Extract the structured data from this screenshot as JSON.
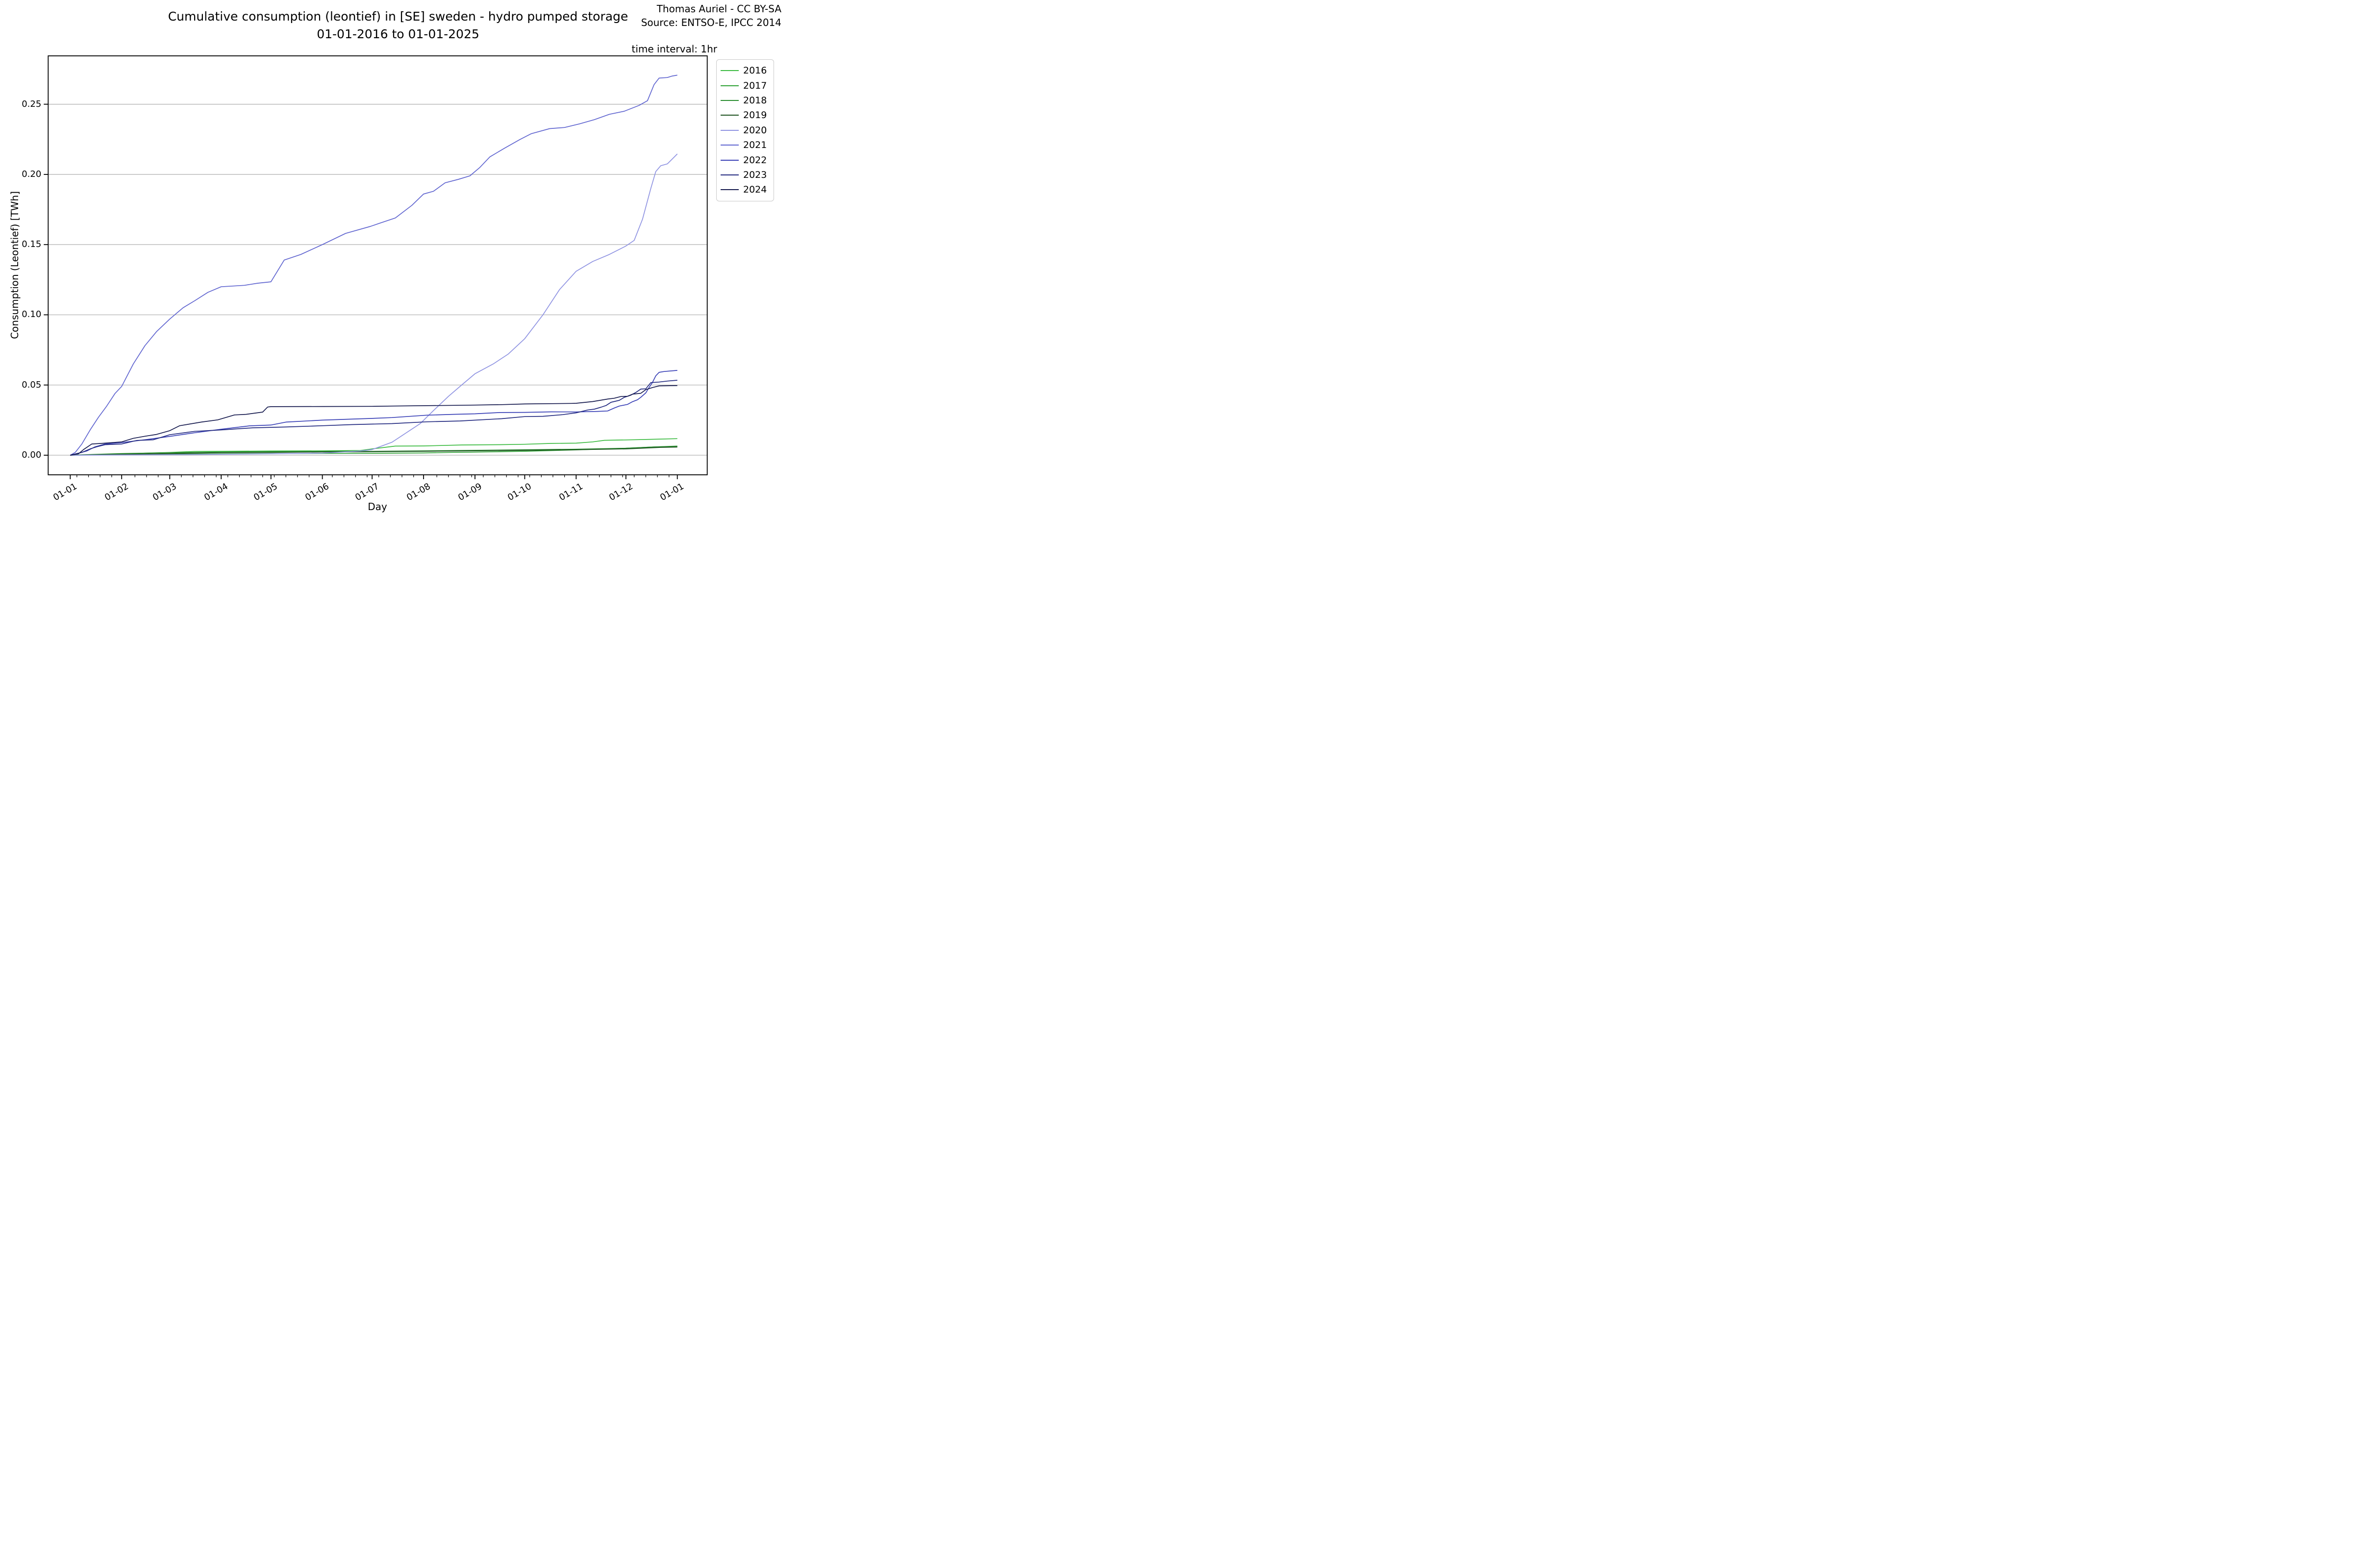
{
  "figure": {
    "title_line1": "Cumulative consumption (leontief) in [SE] sweden - hydro pumped storage",
    "title_line2": "01-01-2016 to 01-01-2025",
    "credit_line1": "Thomas Auriel - CC BY-SA",
    "credit_line2": "Source: ENTSO-E, IPCC 2014",
    "time_interval_note": "time interval: 1hr"
  },
  "chart_data": {
    "type": "line",
    "title": "Cumulative consumption (leontief) in [SE] sweden - hydro pumped storage",
    "subtitle": "01-01-2016 to 01-01-2025",
    "xlabel": "Day",
    "ylabel": "Consumption (Leontief) [TWh]",
    "x_unit": "day of year (01-01 to next 01-01)",
    "x_tick_labels": [
      "01-01",
      "01-02",
      "01-03",
      "01-04",
      "01-05",
      "01-06",
      "01-07",
      "01-08",
      "01-09",
      "01-10",
      "01-11",
      "01-12",
      "01-01"
    ],
    "x_tick_days": [
      0,
      31,
      60,
      91,
      121,
      152,
      182,
      213,
      244,
      274,
      305,
      335,
      366
    ],
    "x_minor_tick_interval_days": 7,
    "y_ticks": [
      0.0,
      0.05,
      0.1,
      0.15,
      0.2,
      0.25
    ],
    "ylim": [
      -0.014,
      0.2845
    ],
    "xlim_days": [
      -13.4,
      383.8
    ],
    "grid": "horizontal major gridlines",
    "grid_color": "#b4b4b4",
    "spine_color": "#000000",
    "legend_position": "outside upper right",
    "legend": {
      "entries": [
        {
          "label": "2016",
          "color": "#3cbb41"
        },
        {
          "label": "2017",
          "color": "#2fa136"
        },
        {
          "label": "2018",
          "color": "#2b8e31"
        },
        {
          "label": "2019",
          "color": "#1d521f"
        },
        {
          "label": "2020",
          "color": "#9094e2"
        },
        {
          "label": "2021",
          "color": "#6166d0"
        },
        {
          "label": "2022",
          "color": "#3940b6"
        },
        {
          "label": "2023",
          "color": "#232a80"
        },
        {
          "label": "2024",
          "color": "#161a4e"
        }
      ]
    },
    "series": [
      {
        "name": "2016",
        "color": "#3cbb41",
        "points": [
          [
            0,
            0
          ],
          [
            10,
            0.0002
          ],
          [
            31,
            0.0008
          ],
          [
            45,
            0.0015
          ],
          [
            60,
            0.002
          ],
          [
            75,
            0.0027
          ],
          [
            91,
            0.0028
          ],
          [
            121,
            0.003
          ],
          [
            152,
            0.0031
          ],
          [
            175,
            0.0034
          ],
          [
            182,
            0.0045
          ],
          [
            196,
            0.0065
          ],
          [
            213,
            0.0066
          ],
          [
            236,
            0.0073
          ],
          [
            259,
            0.0075
          ],
          [
            274,
            0.0078
          ],
          [
            290,
            0.0084
          ],
          [
            305,
            0.0086
          ],
          [
            315,
            0.0095
          ],
          [
            322,
            0.0106
          ],
          [
            335,
            0.0109
          ],
          [
            350,
            0.0113
          ],
          [
            366,
            0.0118
          ]
        ]
      },
      {
        "name": "2017",
        "color": "#2fa136",
        "points": [
          [
            0,
            0
          ],
          [
            31,
            0.0004
          ],
          [
            60,
            0.0007
          ],
          [
            91,
            0.001
          ],
          [
            121,
            0.0012
          ],
          [
            152,
            0.0013
          ],
          [
            182,
            0.0014
          ],
          [
            213,
            0.0016
          ],
          [
            230,
            0.002
          ],
          [
            244,
            0.0022
          ],
          [
            274,
            0.0028
          ],
          [
            305,
            0.0038
          ],
          [
            322,
            0.0045
          ],
          [
            335,
            0.005
          ],
          [
            352,
            0.0059
          ],
          [
            366,
            0.0065
          ]
        ]
      },
      {
        "name": "2018",
        "color": "#2b8e31",
        "points": [
          [
            0,
            0
          ],
          [
            20,
            0.0008
          ],
          [
            31,
            0.0012
          ],
          [
            60,
            0.0018
          ],
          [
            91,
            0.0022
          ],
          [
            121,
            0.0025
          ],
          [
            152,
            0.0027
          ],
          [
            182,
            0.0028
          ],
          [
            213,
            0.0031
          ],
          [
            244,
            0.0035
          ],
          [
            274,
            0.0039
          ],
          [
            305,
            0.0043
          ],
          [
            335,
            0.005
          ],
          [
            352,
            0.0059
          ],
          [
            366,
            0.0063
          ]
        ]
      },
      {
        "name": "2019",
        "color": "#1d521f",
        "points": [
          [
            0,
            0
          ],
          [
            31,
            0.0006
          ],
          [
            60,
            0.0012
          ],
          [
            91,
            0.0018
          ],
          [
            121,
            0.002
          ],
          [
            152,
            0.0023
          ],
          [
            182,
            0.0025
          ],
          [
            213,
            0.0028
          ],
          [
            244,
            0.0031
          ],
          [
            274,
            0.0035
          ],
          [
            305,
            0.0039
          ],
          [
            335,
            0.0045
          ],
          [
            356,
            0.0056
          ],
          [
            366,
            0.0058
          ]
        ]
      },
      {
        "name": "2020",
        "color": "#9094e2",
        "points": [
          [
            0,
            0
          ],
          [
            31,
            0.0002
          ],
          [
            60,
            0.0004
          ],
          [
            91,
            0.0007
          ],
          [
            121,
            0.001
          ],
          [
            152,
            0.0015
          ],
          [
            175,
            0.003
          ],
          [
            182,
            0.004
          ],
          [
            194,
            0.0093
          ],
          [
            202,
            0.0155
          ],
          [
            211,
            0.0225
          ],
          [
            219,
            0.0318
          ],
          [
            228,
            0.0419
          ],
          [
            236,
            0.05
          ],
          [
            244,
            0.058
          ],
          [
            255,
            0.065
          ],
          [
            264,
            0.072
          ],
          [
            274,
            0.083
          ],
          [
            285,
            0.1
          ],
          [
            295,
            0.118
          ],
          [
            305,
            0.131
          ],
          [
            315,
            0.138
          ],
          [
            325,
            0.143
          ],
          [
            335,
            0.149
          ],
          [
            340,
            0.153
          ],
          [
            345,
            0.168
          ],
          [
            350,
            0.19
          ],
          [
            353,
            0.202
          ],
          [
            356,
            0.2062
          ],
          [
            360,
            0.2075
          ],
          [
            363,
            0.211
          ],
          [
            366,
            0.2146
          ]
        ]
      },
      {
        "name": "2021",
        "color": "#6166d0",
        "points": [
          [
            0,
            0
          ],
          [
            3,
            0.002
          ],
          [
            7,
            0.008
          ],
          [
            12,
            0.018
          ],
          [
            17,
            0.027
          ],
          [
            22,
            0.035
          ],
          [
            27,
            0.044
          ],
          [
            31,
            0.049
          ],
          [
            38,
            0.065
          ],
          [
            45,
            0.078
          ],
          [
            52,
            0.088
          ],
          [
            60,
            0.097
          ],
          [
            68,
            0.105
          ],
          [
            75,
            0.11
          ],
          [
            83,
            0.116
          ],
          [
            91,
            0.12
          ],
          [
            105,
            0.121
          ],
          [
            113,
            0.1225
          ],
          [
            121,
            0.1235
          ],
          [
            129,
            0.139
          ],
          [
            139,
            0.143
          ],
          [
            152,
            0.15
          ],
          [
            166,
            0.158
          ],
          [
            181,
            0.163
          ],
          [
            186,
            0.165
          ],
          [
            196,
            0.169
          ],
          [
            206,
            0.178
          ],
          [
            213,
            0.186
          ],
          [
            219,
            0.188
          ],
          [
            226,
            0.194
          ],
          [
            234,
            0.1965
          ],
          [
            241,
            0.199
          ],
          [
            247,
            0.205
          ],
          [
            253,
            0.2125
          ],
          [
            262,
            0.2188
          ],
          [
            271,
            0.2248
          ],
          [
            278,
            0.229
          ],
          [
            289,
            0.2326
          ],
          [
            298,
            0.2334
          ],
          [
            307,
            0.236
          ],
          [
            316,
            0.239
          ],
          [
            325,
            0.2428
          ],
          [
            334,
            0.245
          ],
          [
            343,
            0.2492
          ],
          [
            348,
            0.2525
          ],
          [
            352,
            0.264
          ],
          [
            355,
            0.2686
          ],
          [
            360,
            0.269
          ],
          [
            363,
            0.2701
          ],
          [
            366,
            0.2707
          ]
        ]
      },
      {
        "name": "2022",
        "color": "#3940b6",
        "points": [
          [
            0,
            0
          ],
          [
            10,
            0.003
          ],
          [
            15,
            0.006
          ],
          [
            21,
            0.008
          ],
          [
            31,
            0.009
          ],
          [
            45,
            0.011
          ],
          [
            60,
            0.0134
          ],
          [
            75,
            0.016
          ],
          [
            91,
            0.0185
          ],
          [
            108,
            0.0209
          ],
          [
            121,
            0.0215
          ],
          [
            130,
            0.0236
          ],
          [
            152,
            0.025
          ],
          [
            182,
            0.0262
          ],
          [
            194,
            0.0268
          ],
          [
            215,
            0.0285
          ],
          [
            231,
            0.0291
          ],
          [
            244,
            0.0295
          ],
          [
            259,
            0.0304
          ],
          [
            274,
            0.0305
          ],
          [
            290,
            0.0309
          ],
          [
            305,
            0.0308
          ],
          [
            318,
            0.0312
          ],
          [
            324,
            0.0315
          ],
          [
            328,
            0.0336
          ],
          [
            331,
            0.035
          ],
          [
            336,
            0.0362
          ],
          [
            339,
            0.0381
          ],
          [
            342,
            0.0395
          ],
          [
            344,
            0.0413
          ],
          [
            347,
            0.0444
          ],
          [
            349,
            0.0483
          ],
          [
            351,
            0.0518
          ],
          [
            353,
            0.0565
          ],
          [
            355,
            0.059
          ],
          [
            358,
            0.0596
          ],
          [
            366,
            0.0604
          ]
        ]
      },
      {
        "name": "2023",
        "color": "#232a80",
        "points": [
          [
            0,
            0
          ],
          [
            7,
            0.002
          ],
          [
            12,
            0.0045
          ],
          [
            16,
            0.006
          ],
          [
            21,
            0.0075
          ],
          [
            31,
            0.008
          ],
          [
            40,
            0.0105
          ],
          [
            50,
            0.011
          ],
          [
            60,
            0.0146
          ],
          [
            75,
            0.017
          ],
          [
            91,
            0.018
          ],
          [
            110,
            0.0195
          ],
          [
            130,
            0.0201
          ],
          [
            152,
            0.021
          ],
          [
            170,
            0.0218
          ],
          [
            194,
            0.0225
          ],
          [
            215,
            0.0238
          ],
          [
            235,
            0.0244
          ],
          [
            260,
            0.026
          ],
          [
            274,
            0.0275
          ],
          [
            285,
            0.0277
          ],
          [
            297,
            0.0289
          ],
          [
            305,
            0.0302
          ],
          [
            312,
            0.0322
          ],
          [
            316,
            0.0328
          ],
          [
            320,
            0.0342
          ],
          [
            323,
            0.0354
          ],
          [
            326,
            0.0377
          ],
          [
            331,
            0.0391
          ],
          [
            334,
            0.0412
          ],
          [
            338,
            0.0428
          ],
          [
            341,
            0.0447
          ],
          [
            344,
            0.0471
          ],
          [
            347,
            0.0473
          ],
          [
            350,
            0.0517
          ],
          [
            355,
            0.0521
          ],
          [
            360,
            0.0528
          ],
          [
            366,
            0.0534
          ]
        ]
      },
      {
        "name": "2024",
        "color": "#161a4e",
        "points": [
          [
            0,
            0
          ],
          [
            5,
            0.001
          ],
          [
            8,
            0.004
          ],
          [
            13,
            0.008
          ],
          [
            20,
            0.0085
          ],
          [
            31,
            0.0095
          ],
          [
            38,
            0.012
          ],
          [
            45,
            0.0135
          ],
          [
            52,
            0.0148
          ],
          [
            60,
            0.0175
          ],
          [
            66,
            0.021
          ],
          [
            79,
            0.0236
          ],
          [
            89,
            0.0252
          ],
          [
            99,
            0.0287
          ],
          [
            106,
            0.0291
          ],
          [
            116,
            0.0307
          ],
          [
            119,
            0.0343
          ],
          [
            121,
            0.0346
          ],
          [
            152,
            0.0347
          ],
          [
            182,
            0.0348
          ],
          [
            194,
            0.035
          ],
          [
            230,
            0.0355
          ],
          [
            244,
            0.0357
          ],
          [
            260,
            0.036
          ],
          [
            274,
            0.0365
          ],
          [
            302,
            0.0369
          ],
          [
            305,
            0.037
          ],
          [
            315,
            0.0382
          ],
          [
            324,
            0.04
          ],
          [
            328,
            0.0406
          ],
          [
            332,
            0.0418
          ],
          [
            336,
            0.042
          ],
          [
            339,
            0.0435
          ],
          [
            344,
            0.0441
          ],
          [
            347,
            0.0467
          ],
          [
            351,
            0.0482
          ],
          [
            355,
            0.0494
          ],
          [
            366,
            0.0496
          ]
        ]
      }
    ]
  }
}
